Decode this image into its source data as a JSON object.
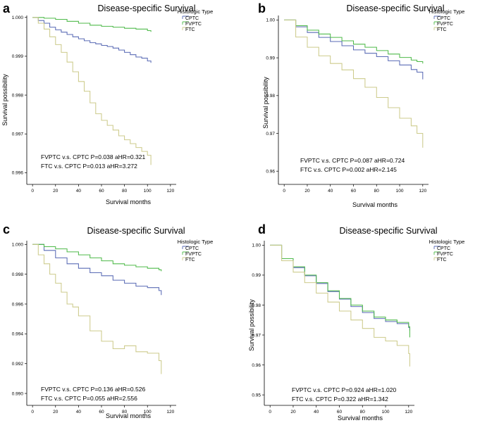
{
  "chart_data": [
    {
      "type": "line",
      "panel": "a",
      "title": "Disease-specific Survival",
      "xlabel": "Survival months",
      "ylabel": "Survival possibility",
      "xlim": [
        -5,
        125
      ],
      "xticks": [
        0,
        20,
        40,
        60,
        80,
        100,
        120
      ],
      "ylim": [
        0.9957,
        1.00005
      ],
      "yticks": [
        0.996,
        0.997,
        0.998,
        0.999,
        1.0
      ],
      "ytick_labels": [
        "0.996",
        "0.997",
        "0.998",
        "0.999",
        "1.000"
      ],
      "legend_title": "Histologic Type",
      "series": [
        {
          "name": "CPTC",
          "color": "#5a6bb5",
          "x": [
            0,
            5,
            10,
            15,
            20,
            25,
            30,
            35,
            40,
            45,
            50,
            55,
            60,
            65,
            70,
            75,
            80,
            85,
            90,
            95,
            100,
            103
          ],
          "y": [
            1.0,
            0.99992,
            0.99985,
            0.99975,
            0.99968,
            0.99962,
            0.99956,
            0.9995,
            0.99945,
            0.9994,
            0.99935,
            0.99932,
            0.99928,
            0.99925,
            0.99921,
            0.99916,
            0.9991,
            0.99904,
            0.99898,
            0.99895,
            0.99888,
            0.99883
          ]
        },
        {
          "name": "FVPTC",
          "color": "#4fba4a",
          "x": [
            0,
            10,
            20,
            30,
            40,
            50,
            60,
            70,
            80,
            90,
            100,
            103
          ],
          "y": [
            1.0,
            0.99998,
            0.99995,
            0.9999,
            0.99985,
            0.9998,
            0.99977,
            0.99975,
            0.99972,
            0.9997,
            0.99966,
            0.99963
          ]
        },
        {
          "name": "FTC",
          "color": "#cdcb8c",
          "x": [
            0,
            5,
            10,
            15,
            20,
            25,
            30,
            35,
            40,
            45,
            50,
            55,
            60,
            65,
            70,
            75,
            80,
            85,
            90,
            95,
            100,
            103
          ],
          "y": [
            1.0,
            0.99985,
            0.9997,
            0.9995,
            0.9993,
            0.9991,
            0.99885,
            0.9986,
            0.99835,
            0.9981,
            0.9978,
            0.99752,
            0.99735,
            0.99722,
            0.9971,
            0.99695,
            0.99685,
            0.99675,
            0.99665,
            0.99655,
            0.99645,
            0.9962
          ]
        }
      ],
      "annotations": [
        "FVPTC v.s. CPTC P=0.038 aHR=0.321",
        "FTC v.s. CPTC P=0.013 aHR=3.272"
      ]
    },
    {
      "type": "line",
      "panel": "b",
      "title": "Disease-specific Survival",
      "xlabel": "Survival months",
      "ylabel": "Survival possibility",
      "xlim": [
        -5,
        125
      ],
      "xticks": [
        0,
        20,
        40,
        60,
        80,
        100,
        120
      ],
      "ylim": [
        0.9565,
        1.0012
      ],
      "yticks": [
        0.96,
        0.97,
        0.98,
        0.99,
        1.0
      ],
      "ytick_labels": [
        "0.96",
        "0.97",
        "0.98",
        "0.99",
        "1.00"
      ],
      "legend_title": "Histologic Type",
      "series": [
        {
          "name": "CPTC",
          "color": "#5a6bb5",
          "x": [
            0,
            10,
            20,
            30,
            40,
            50,
            60,
            70,
            80,
            90,
            100,
            110,
            115,
            120
          ],
          "y": [
            1.0,
            0.9982,
            0.9967,
            0.9954,
            0.9943,
            0.9932,
            0.9921,
            0.9912,
            0.9903,
            0.9892,
            0.9881,
            0.9869,
            0.9862,
            0.9843
          ]
        },
        {
          "name": "FVPTC",
          "color": "#4fba4a",
          "x": [
            0,
            10,
            20,
            30,
            40,
            50,
            60,
            70,
            80,
            90,
            100,
            110,
            115,
            120
          ],
          "y": [
            1.0,
            0.9985,
            0.9973,
            0.9963,
            0.9954,
            0.9945,
            0.9936,
            0.9928,
            0.9919,
            0.991,
            0.9901,
            0.9894,
            0.989,
            0.9885
          ]
        },
        {
          "name": "FTC",
          "color": "#cdcb8c",
          "x": [
            0,
            10,
            20,
            30,
            40,
            50,
            60,
            70,
            80,
            90,
            100,
            110,
            115,
            120
          ],
          "y": [
            1.0,
            0.9955,
            0.9928,
            0.9905,
            0.9885,
            0.9868,
            0.9845,
            0.9822,
            0.9795,
            0.9768,
            0.974,
            0.972,
            0.97,
            0.9662
          ]
        }
      ],
      "annotations": [
        "FVPTC v.s. CPTC P=0.087 aHR=0.724",
        "FTC v.s. CPTC P=0.002 aHR=2.145"
      ]
    },
    {
      "type": "line",
      "panel": "c",
      "title": "Disease-specific Survival",
      "xlabel": "Survival months",
      "ylabel": "",
      "xlim": [
        -5,
        125
      ],
      "xticks": [
        0,
        20,
        40,
        60,
        80,
        100,
        120
      ],
      "ylim": [
        0.9892,
        1.00025
      ],
      "yticks": [
        0.99,
        0.992,
        0.994,
        0.996,
        0.998,
        1.0
      ],
      "ytick_labels": [
        "0.990",
        "0.992",
        "0.994",
        "0.996",
        "0.998",
        "1.000"
      ],
      "legend_title": "Histologic Type",
      "series": [
        {
          "name": "CPTC",
          "color": "#5a6bb5",
          "x": [
            0,
            10,
            20,
            30,
            40,
            50,
            60,
            70,
            80,
            90,
            100,
            110,
            112
          ],
          "y": [
            1.0,
            0.9996,
            0.9991,
            0.9987,
            0.9984,
            0.9981,
            0.9979,
            0.9976,
            0.9974,
            0.9972,
            0.9971,
            0.9969,
            0.9966
          ]
        },
        {
          "name": "FVPTC",
          "color": "#4fba4a",
          "x": [
            0,
            10,
            20,
            30,
            40,
            50,
            60,
            70,
            80,
            90,
            100,
            110,
            112
          ],
          "y": [
            1.0,
            0.99985,
            0.9997,
            0.9995,
            0.9993,
            0.9991,
            0.9989,
            0.9987,
            0.9986,
            0.9985,
            0.9984,
            0.9983,
            0.9982
          ]
        },
        {
          "name": "FTC",
          "color": "#cdcb8c",
          "x": [
            0,
            5,
            10,
            15,
            20,
            25,
            30,
            35,
            40,
            50,
            60,
            70,
            80,
            90,
            100,
            110,
            112
          ],
          "y": [
            1.0,
            0.9993,
            0.9987,
            0.998,
            0.9974,
            0.9968,
            0.996,
            0.9958,
            0.9952,
            0.9942,
            0.9935,
            0.993,
            0.9932,
            0.9928,
            0.9927,
            0.9922,
            0.9913
          ]
        }
      ],
      "annotations": [
        "FVPTC v.s. CPTC P=0.136 aHR=0.526",
        "FTC v.s. CPTC P=0.055 aHR=2.556"
      ]
    },
    {
      "type": "line",
      "panel": "d",
      "title": "Disease-specific Survival",
      "xlabel": "Survival months",
      "ylabel": "Survival possibility",
      "xlim": [
        -5,
        125
      ],
      "xticks": [
        0,
        20,
        40,
        60,
        80,
        100,
        120
      ],
      "ylim": [
        0.9465,
        1.0015
      ],
      "yticks": [
        0.95,
        0.96,
        0.97,
        0.98,
        0.99,
        1.0
      ],
      "ytick_labels": [
        "0.95",
        "0.96",
        "0.97",
        "0.98",
        "0.99",
        "1.00"
      ],
      "legend_title": "Histologic Type",
      "series": [
        {
          "name": "CPTC",
          "color": "#5a6bb5",
          "x": [
            0,
            10,
            20,
            30,
            40,
            50,
            60,
            70,
            80,
            90,
            100,
            110,
            120,
            121
          ],
          "y": [
            1.0,
            0.9955,
            0.9925,
            0.9898,
            0.9872,
            0.9845,
            0.982,
            0.9795,
            0.9775,
            0.9755,
            0.9745,
            0.9738,
            0.9725,
            0.9715
          ]
        },
        {
          "name": "FVPTC",
          "color": "#4fba4a",
          "x": [
            0,
            10,
            20,
            30,
            40,
            50,
            60,
            70,
            80,
            90,
            100,
            110,
            120,
            121
          ],
          "y": [
            1.0,
            0.9955,
            0.9928,
            0.99,
            0.9875,
            0.9848,
            0.9822,
            0.98,
            0.978,
            0.976,
            0.975,
            0.9742,
            0.9728,
            0.9692
          ]
        },
        {
          "name": "FTC",
          "color": "#cdcb8c",
          "x": [
            0,
            10,
            20,
            30,
            40,
            50,
            60,
            70,
            80,
            90,
            100,
            110,
            120,
            121
          ],
          "y": [
            1.0,
            0.9948,
            0.991,
            0.9875,
            0.984,
            0.981,
            0.978,
            0.975,
            0.9722,
            0.9692,
            0.968,
            0.9665,
            0.9638,
            0.9595
          ]
        }
      ],
      "annotations": [
        "FVPTC v.s. CPTC P=0.924 aHR=1.020",
        "FTC v.s. CPTC P=0.322 aHR=1.342"
      ]
    }
  ]
}
